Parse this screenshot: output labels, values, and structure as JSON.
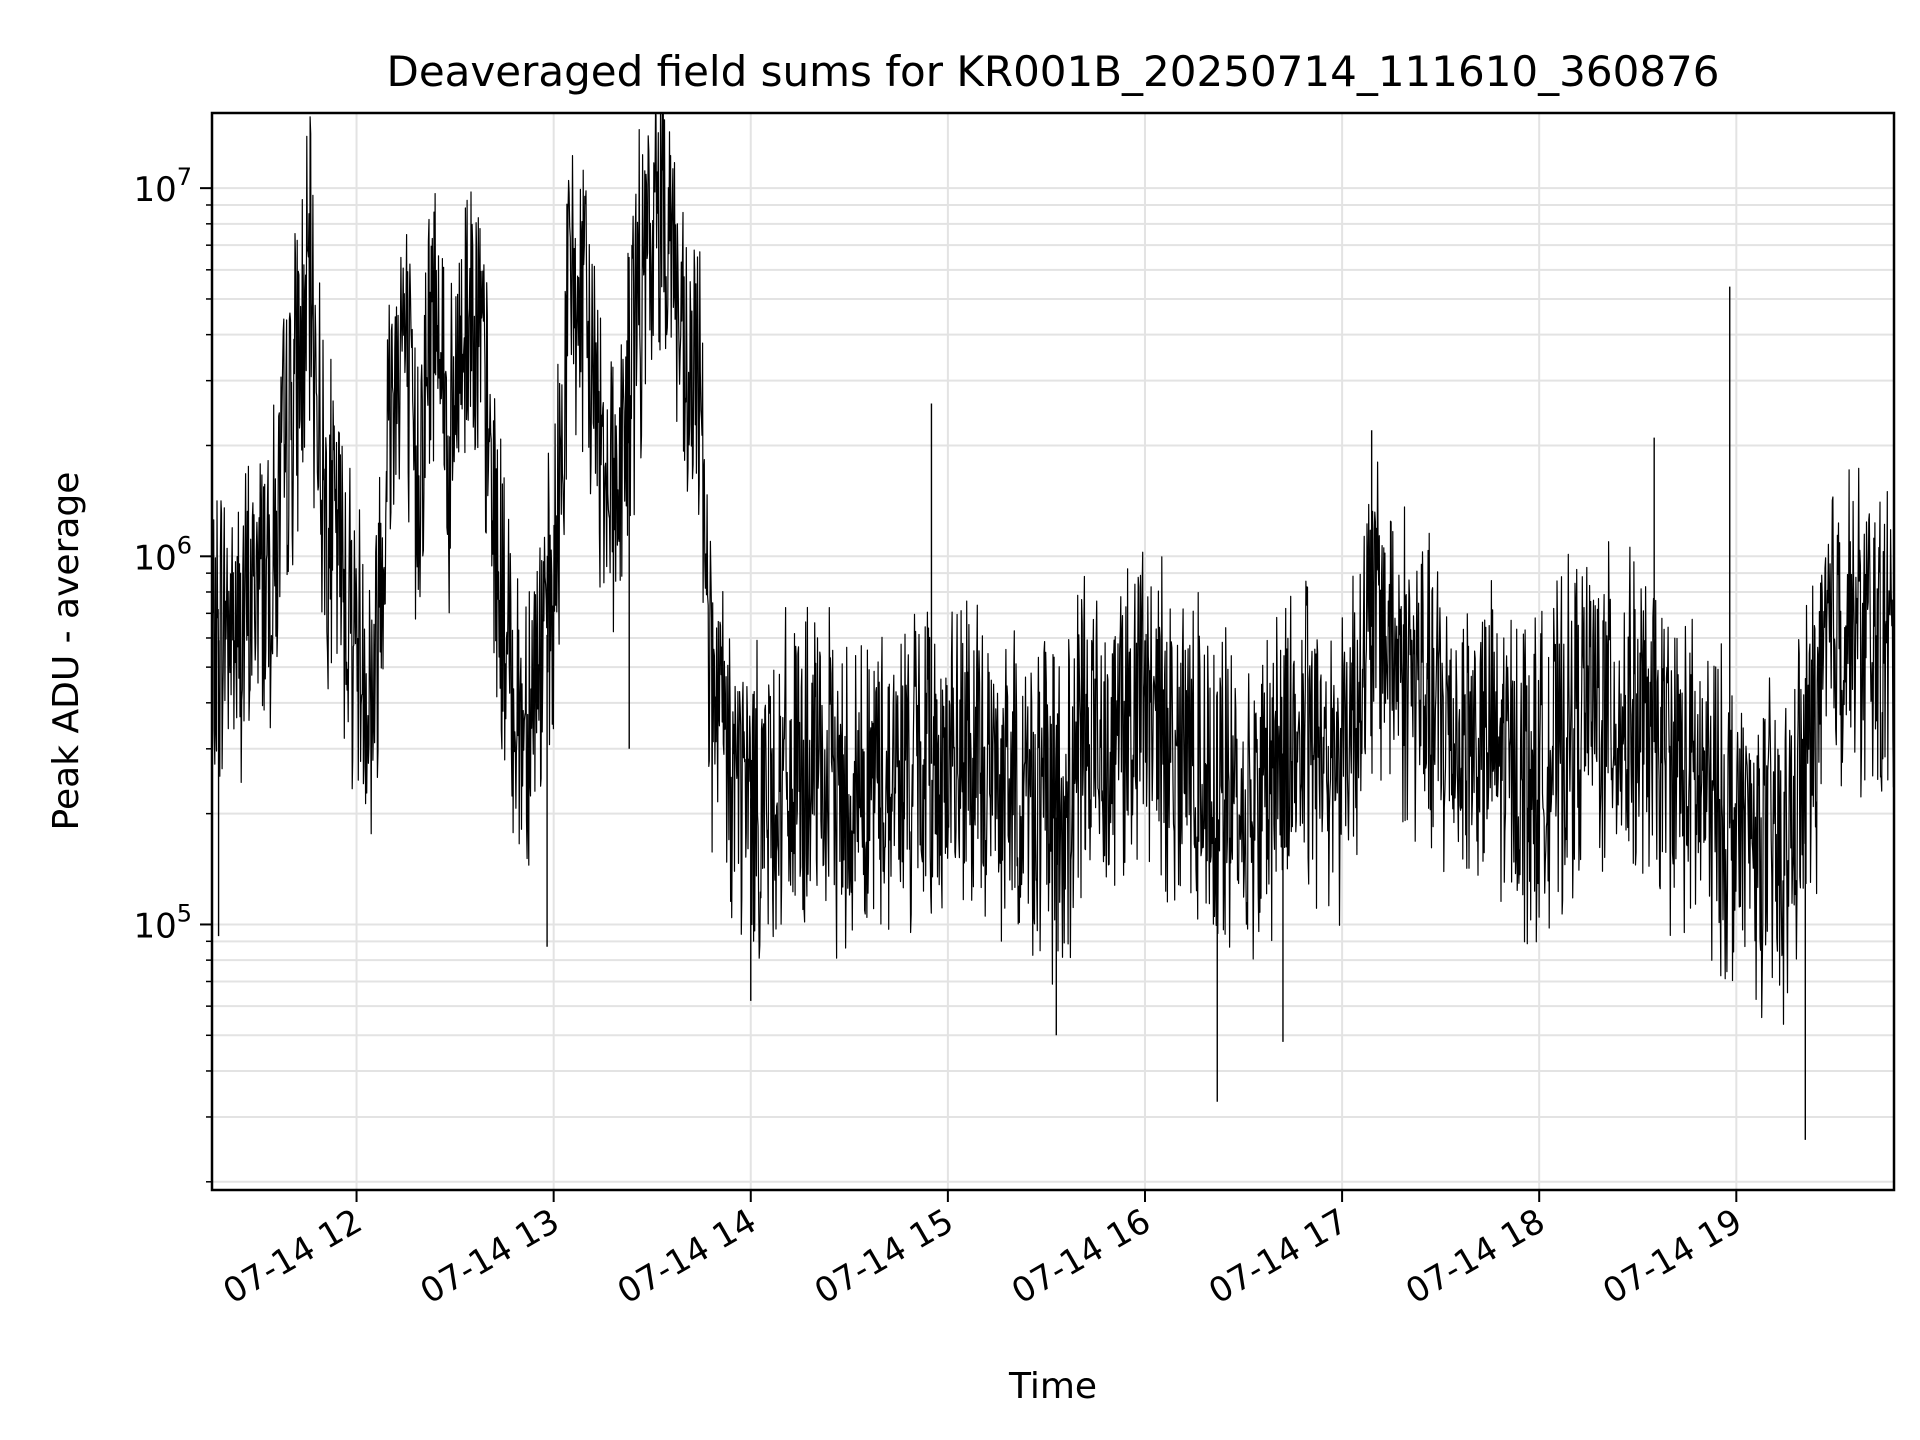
{
  "chart_data": {
    "type": "line",
    "title": "Deaveraged field sums for KR001B_20250714_111610_360876",
    "xlabel": "Time",
    "ylabel": "Peak ADU - average",
    "x_type": "datetime",
    "yscale": "log",
    "grid": true,
    "legend": "none",
    "xlim": [
      "2025-07-14T11:16",
      "2025-07-14T19:48"
    ],
    "ylim": [
      19000,
      16000000
    ],
    "x_ticks": [
      {
        "t": "2025-07-14T12:00",
        "label": "07-14 12"
      },
      {
        "t": "2025-07-14T13:00",
        "label": "07-14 13"
      },
      {
        "t": "2025-07-14T14:00",
        "label": "07-14 14"
      },
      {
        "t": "2025-07-14T15:00",
        "label": "07-14 15"
      },
      {
        "t": "2025-07-14T16:00",
        "label": "07-14 16"
      },
      {
        "t": "2025-07-14T17:00",
        "label": "07-14 17"
      },
      {
        "t": "2025-07-14T18:00",
        "label": "07-14 18"
      },
      {
        "t": "2025-07-14T19:00",
        "label": "07-14 19"
      }
    ],
    "y_ticks": [
      {
        "value": 100000,
        "base": "10",
        "exp": "5"
      },
      {
        "value": 1000000,
        "base": "10",
        "exp": "6"
      },
      {
        "value": 10000000,
        "base": "10",
        "exp": "7"
      }
    ],
    "series": [
      {
        "color": "#000000",
        "points": [
          [
            "2025-07-14T11:16",
            500000
          ],
          [
            "2025-07-14T11:20",
            700000
          ],
          [
            "2025-07-14T11:25",
            600000
          ],
          [
            "2025-07-14T11:30",
            900000
          ],
          [
            "2025-07-14T11:35",
            1000000
          ],
          [
            "2025-07-14T11:40",
            2500000
          ],
          [
            "2025-07-14T11:44",
            4000000
          ],
          [
            "2025-07-14T11:46",
            5500000
          ],
          [
            "2025-07-14T11:50",
            1500000
          ],
          [
            "2025-07-14T11:55",
            1000000
          ],
          [
            "2025-07-14T12:00",
            600000
          ],
          [
            "2025-07-14T12:05",
            400000
          ],
          [
            "2025-07-14T12:10",
            2500000
          ],
          [
            "2025-07-14T12:14",
            4500000
          ],
          [
            "2025-07-14T12:18",
            1500000
          ],
          [
            "2025-07-14T12:22",
            3500000
          ],
          [
            "2025-07-14T12:25",
            6000000
          ],
          [
            "2025-07-14T12:28",
            1500000
          ],
          [
            "2025-07-14T12:32",
            4000000
          ],
          [
            "2025-07-14T12:36",
            5500000
          ],
          [
            "2025-07-14T12:40",
            2000000
          ],
          [
            "2025-07-14T12:45",
            600000
          ],
          [
            "2025-07-14T12:50",
            350000
          ],
          [
            "2025-07-14T12:55",
            500000
          ],
          [
            "2025-07-14T13:00",
            700000
          ],
          [
            "2025-07-14T13:03",
            2500000
          ],
          [
            "2025-07-14T13:05",
            6000000
          ],
          [
            "2025-07-14T13:10",
            4000000
          ],
          [
            "2025-07-14T13:15",
            2000000
          ],
          [
            "2025-07-14T13:20",
            1500000
          ],
          [
            "2025-07-14T13:25",
            4500000
          ],
          [
            "2025-07-14T13:30",
            7000000
          ],
          [
            "2025-07-14T13:33",
            10000000
          ],
          [
            "2025-07-14T13:36",
            8000000
          ],
          [
            "2025-07-14T13:40",
            2500000
          ],
          [
            "2025-07-14T13:45",
            3000000
          ],
          [
            "2025-07-14T13:48",
            400000
          ],
          [
            "2025-07-14T13:55",
            250000
          ],
          [
            "2025-07-14T14:00",
            220000
          ],
          [
            "2025-07-14T14:15",
            250000
          ],
          [
            "2025-07-14T14:30",
            230000
          ],
          [
            "2025-07-14T14:45",
            260000
          ],
          [
            "2025-07-14T15:00",
            280000
          ],
          [
            "2025-07-14T15:15",
            250000
          ],
          [
            "2025-07-14T15:30",
            220000
          ],
          [
            "2025-07-14T15:35",
            180000
          ],
          [
            "2025-07-14T15:40",
            300000
          ],
          [
            "2025-07-14T15:50",
            350000
          ],
          [
            "2025-07-14T16:00",
            400000
          ],
          [
            "2025-07-14T16:15",
            280000
          ],
          [
            "2025-07-14T16:30",
            200000
          ],
          [
            "2025-07-14T16:45",
            320000
          ],
          [
            "2025-07-14T17:00",
            300000
          ],
          [
            "2025-07-14T17:10",
            700000
          ],
          [
            "2025-07-14T17:20",
            500000
          ],
          [
            "2025-07-14T17:30",
            350000
          ],
          [
            "2025-07-14T17:45",
            300000
          ],
          [
            "2025-07-14T18:00",
            250000
          ],
          [
            "2025-07-14T18:15",
            400000
          ],
          [
            "2025-07-14T18:30",
            350000
          ],
          [
            "2025-07-14T18:45",
            250000
          ],
          [
            "2025-07-14T19:00",
            180000
          ],
          [
            "2025-07-14T19:15",
            150000
          ],
          [
            "2025-07-14T19:25",
            400000
          ],
          [
            "2025-07-14T19:30",
            700000
          ],
          [
            "2025-07-14T19:40",
            600000
          ],
          [
            "2025-07-14T19:48",
            550000
          ]
        ],
        "spikes": [
          [
            "2025-07-14T11:18",
            93000
          ],
          [
            "2025-07-14T12:58",
            87000
          ],
          [
            "2025-07-14T13:23",
            300000
          ],
          [
            "2025-07-14T14:00",
            62000
          ],
          [
            "2025-07-14T14:55",
            2600000
          ],
          [
            "2025-07-14T15:33",
            50000
          ],
          [
            "2025-07-14T16:22",
            33000
          ],
          [
            "2025-07-14T16:42",
            48000
          ],
          [
            "2025-07-14T17:09",
            2200000
          ],
          [
            "2025-07-14T18:35",
            2100000
          ],
          [
            "2025-07-14T18:58",
            5400000
          ],
          [
            "2025-07-14T19:21",
            26000
          ]
        ]
      }
    ]
  }
}
